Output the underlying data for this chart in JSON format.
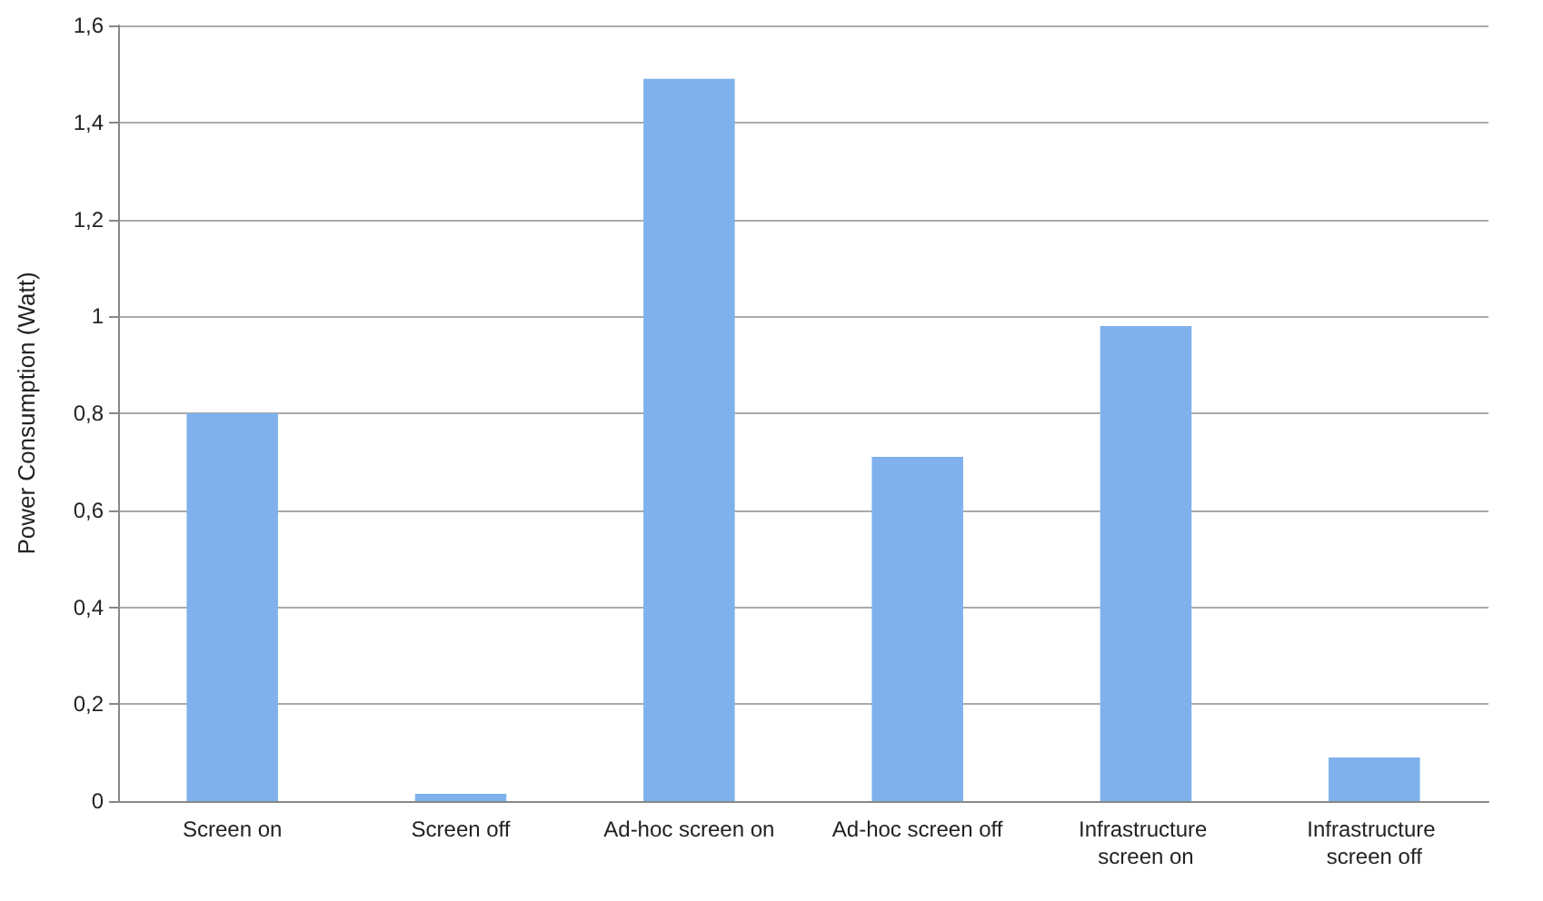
{
  "chart_data": {
    "type": "bar",
    "ylabel": "Power Consumption (Watt)",
    "categories": [
      "Screen on",
      "Screen off",
      "Ad-hoc screen on",
      "Ad-hoc screen off",
      "Infrastructure screen on",
      "Infrastructure screen off"
    ],
    "values": [
      0.8,
      0.015,
      1.49,
      0.71,
      0.98,
      0.09
    ],
    "color": "#7fb2ec",
    "ylim": [
      0,
      1.6
    ],
    "yticks": [
      0,
      {
        "value": 0.2,
        "label": "0,2"
      },
      {
        "value": 0.4,
        "label": "0,4"
      },
      {
        "value": 0.6,
        "label": "0,6"
      },
      {
        "value": 0.8,
        "label": "0,8"
      },
      1,
      {
        "value": 1.2,
        "label": "1,2"
      },
      {
        "value": 1.4,
        "label": "1,4"
      },
      {
        "value": 1.6,
        "label": "1,6"
      }
    ],
    "grid": "y"
  }
}
